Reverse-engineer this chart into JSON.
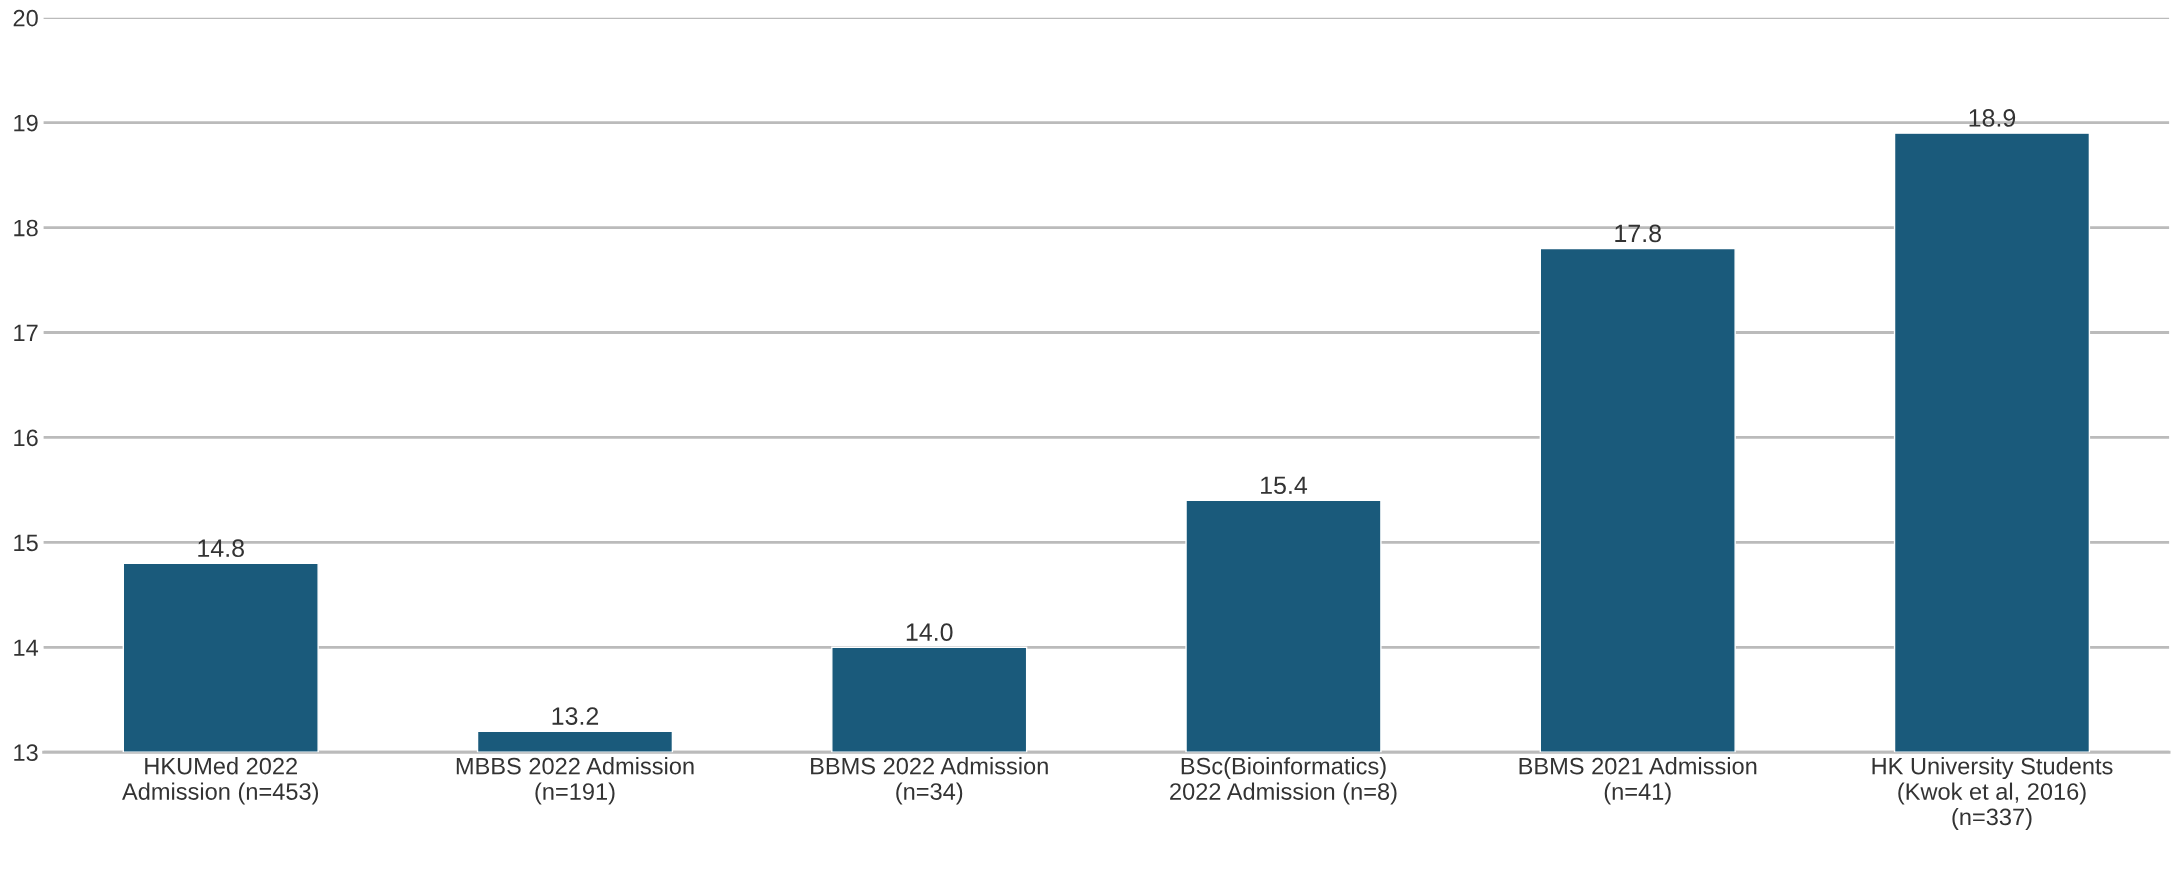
{
  "chart_data": {
    "type": "bar",
    "categories": [
      "HKUMed 2022\nAdmission (n=453)",
      "MBBS 2022 Admission\n(n=191)",
      "BBMS 2022 Admission\n(n=34)",
      "BSc(Bioinformatics)\n2022 Admission (n=8)",
      "BBMS 2021 Admission\n(n=41)",
      "HK University Students\n(Kwok et al, 2016)\n(n=337)"
    ],
    "values": [
      14.8,
      13.2,
      14.0,
      15.4,
      17.8,
      18.9
    ],
    "value_labels": [
      "14.8",
      "13.2",
      "14.0",
      "15.4",
      "17.8",
      "18.9"
    ],
    "color": "#1a5a7b",
    "ylim": [
      13,
      20
    ],
    "yticks": [
      13,
      14,
      15,
      16,
      17,
      18,
      19,
      20
    ],
    "grid": "y"
  }
}
